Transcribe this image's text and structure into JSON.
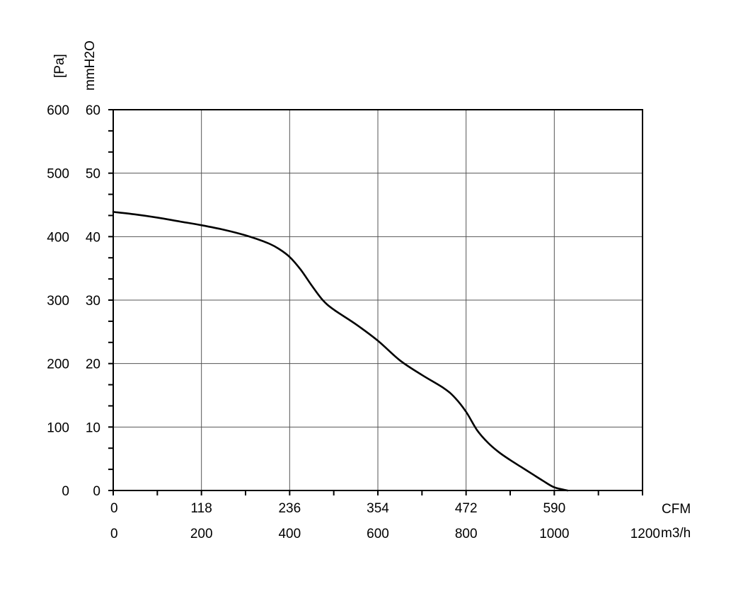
{
  "chart_data": {
    "type": "line",
    "y_axes": [
      {
        "unit_label": "[Pa]",
        "ticks": [
          0,
          100,
          200,
          300,
          400,
          500,
          600
        ],
        "range": [
          0,
          600
        ]
      },
      {
        "unit_label": "mmH2O",
        "ticks": [
          0,
          10,
          20,
          30,
          40,
          50,
          60
        ],
        "range": [
          0,
          60
        ]
      }
    ],
    "x_axes": [
      {
        "unit_label": "CFM",
        "ticks": [
          0,
          118,
          236,
          354,
          472,
          590
        ]
      },
      {
        "unit_label": "m3/h",
        "ticks": [
          0,
          200,
          400,
          600,
          800,
          1000,
          1200
        ],
        "range": [
          0,
          1200
        ]
      }
    ],
    "grid": true,
    "series": [
      {
        "x_unit": "m3/h",
        "y_unit": "Pa",
        "x": [
          0,
          50,
          100,
          150,
          200,
          250,
          300,
          350,
          375,
          400,
          425,
          450,
          475,
          500,
          550,
          600,
          650,
          700,
          750,
          775,
          800,
          825,
          850,
          875,
          900,
          925,
          950,
          975,
          1000,
          1030
        ],
        "y": [
          439,
          435,
          430,
          424,
          418,
          411,
          402,
          390,
          381,
          368,
          348,
          323,
          300,
          285,
          262,
          236,
          205,
          182,
          161,
          146,
          124,
          95,
          75,
          60,
          48,
          37,
          26,
          15,
          5,
          0
        ]
      }
    ]
  }
}
